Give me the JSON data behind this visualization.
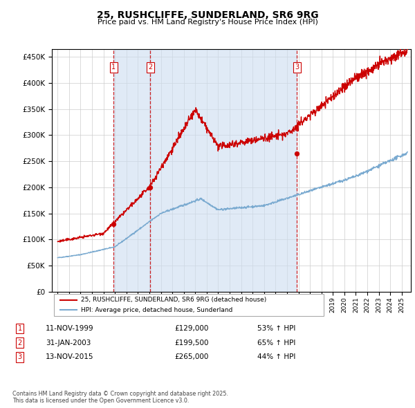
{
  "title": "25, RUSHCLIFFE, SUNDERLAND, SR6 9RG",
  "subtitle": "Price paid vs. HM Land Registry's House Price Index (HPI)",
  "hpi_label": "HPI: Average price, detached house, Sunderland",
  "price_label": "25, RUSHCLIFFE, SUNDERLAND, SR6 9RG (detached house)",
  "legend_text": "Contains HM Land Registry data © Crown copyright and database right 2025.\nThis data is licensed under the Open Government Licence v3.0.",
  "transactions": [
    {
      "num": 1,
      "date": "11-NOV-1999",
      "price": 129000,
      "pct": "53%",
      "dir": "↑",
      "year": 1999.87
    },
    {
      "num": 2,
      "date": "31-JAN-2003",
      "price": 199500,
      "pct": "65%",
      "dir": "↑",
      "year": 2003.08
    },
    {
      "num": 3,
      "date": "13-NOV-2015",
      "price": 265000,
      "pct": "44%",
      "dir": "↑",
      "year": 2015.87
    }
  ],
  "ylim": [
    0,
    465000
  ],
  "yticks": [
    0,
    50000,
    100000,
    150000,
    200000,
    250000,
    300000,
    350000,
    400000,
    450000
  ],
  "xlim": [
    1994.5,
    2025.8
  ],
  "price_color": "#cc0000",
  "hpi_color": "#7aaad0",
  "shade_color": "#ccddf0",
  "grid_color": "#cccccc",
  "bg_color": "#ffffff"
}
